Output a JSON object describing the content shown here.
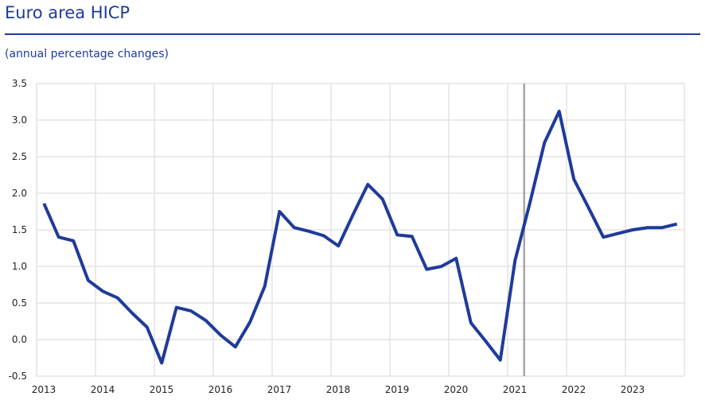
{
  "chart_data": {
    "type": "line",
    "title": "Euro area HICP",
    "subtitle": "(annual percentage changes)",
    "xlabel": "",
    "ylabel": "",
    "ylim": [
      -0.5,
      3.5
    ],
    "xlim": [
      2013,
      2024
    ],
    "yticks": [
      "3.5",
      "3.0",
      "2.5",
      "2.0",
      "1.5",
      "1.0",
      "0.5",
      "0.0",
      "-0.5"
    ],
    "xticks": [
      "2013",
      "2014",
      "2015",
      "2016",
      "2017",
      "2018",
      "2019",
      "2020",
      "2021",
      "2022",
      "2023"
    ],
    "grid": true,
    "line_color": "#1f3b9a",
    "marker_line": {
      "x": 2021.28,
      "color": "#a6a6a6"
    },
    "series": [
      {
        "frequency": "quarterly",
        "x": [
          "2013Q1",
          "2013Q2",
          "2013Q3",
          "2013Q4",
          "2014Q1",
          "2014Q2",
          "2014Q3",
          "2014Q4",
          "2015Q1",
          "2015Q2",
          "2015Q3",
          "2015Q4",
          "2016Q1",
          "2016Q2",
          "2016Q3",
          "2016Q4",
          "2017Q1",
          "2017Q2",
          "2017Q3",
          "2017Q4",
          "2018Q1",
          "2018Q2",
          "2018Q3",
          "2018Q4",
          "2019Q1",
          "2019Q2",
          "2019Q3",
          "2019Q4",
          "2020Q1",
          "2020Q2",
          "2020Q3",
          "2020Q4",
          "2021Q1",
          "2021Q2",
          "2021Q3",
          "2021Q4",
          "2022Q1",
          "2022Q2",
          "2022Q3",
          "2022Q4",
          "2023Q1",
          "2023Q2",
          "2023Q3",
          "2023Q4"
        ],
        "values": [
          1.86,
          1.4,
          1.35,
          0.81,
          0.66,
          0.57,
          0.36,
          0.17,
          -0.32,
          0.44,
          0.39,
          0.26,
          0.06,
          -0.1,
          0.24,
          0.73,
          1.75,
          1.53,
          1.48,
          1.42,
          1.28,
          1.71,
          2.12,
          1.92,
          1.43,
          1.41,
          0.96,
          1.0,
          1.11,
          0.23,
          -0.02,
          -0.28,
          1.08,
          1.86,
          2.69,
          3.12,
          2.19,
          1.8,
          1.4,
          1.45,
          1.5,
          1.53,
          1.53,
          1.58
        ]
      }
    ]
  }
}
